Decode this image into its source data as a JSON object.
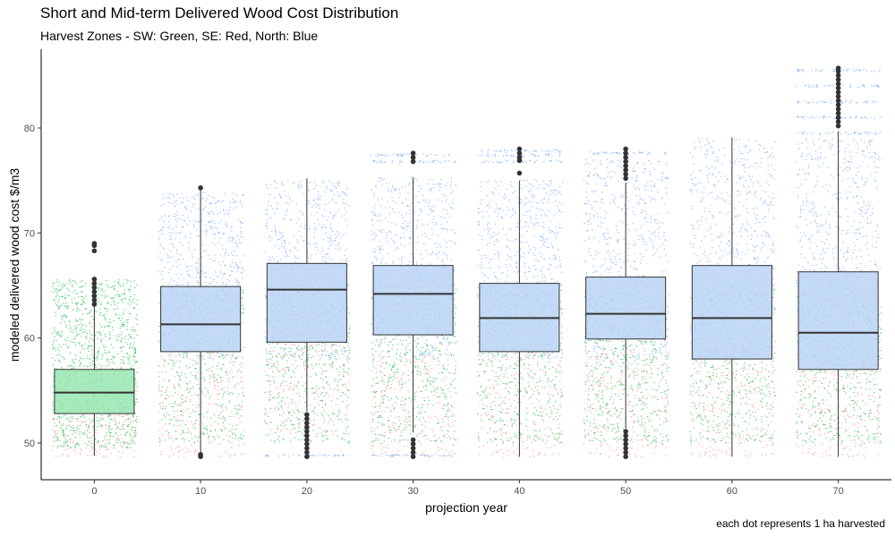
{
  "chart_data": {
    "type": "box",
    "title": "Short and Mid-term Delivered Wood Cost Distribution",
    "subtitle": "Harvest Zones - SW: Green, SE: Red, North: Blue",
    "caption": "each dot represents 1 ha harvested",
    "xlabel": "projection year",
    "ylabel": "modeled delivered wood cost $/m3",
    "x_ticks": [
      0,
      10,
      20,
      30,
      40,
      50,
      60,
      70
    ],
    "y_ticks": [
      50,
      60,
      70,
      80
    ],
    "ylim": [
      46.5,
      87.5
    ],
    "grid": false,
    "legend": "none",
    "zone_colors": {
      "SW": "#00BA38",
      "SE": "#F8766D",
      "North": "#619CFF"
    },
    "boxes": [
      {
        "x": 0,
        "whisker_low": 48.8,
        "q1": 52.8,
        "median": 54.8,
        "q3": 57.0,
        "whisker_high": 63.0,
        "fill": "#99E6B2",
        "outliers_low": [],
        "outliers_high": [
          63.2,
          63.6,
          64.0,
          64.4,
          64.8,
          65.2,
          65.6,
          68.3,
          68.8,
          69.0
        ],
        "jitter_range": [
          48.6,
          65.6
        ],
        "jitter_high": [],
        "jitter_low": []
      },
      {
        "x": 10,
        "whisker_low": 49.1,
        "q1": 58.7,
        "median": 61.3,
        "q3": 64.9,
        "whisker_high": 74.3,
        "fill": "#BAD4F5",
        "outliers_low": [
          48.7,
          48.9
        ],
        "outliers_high": [
          74.3
        ],
        "jitter_range": [
          48.6,
          74.0
        ],
        "jitter_high": [],
        "jitter_low": []
      },
      {
        "x": 20,
        "whisker_low": 53.0,
        "q1": 59.6,
        "median": 64.6,
        "q3": 67.1,
        "whisker_high": 75.2,
        "fill": "#BAD4F5",
        "outliers_low": [
          48.7,
          49.1,
          49.5,
          49.9,
          50.3,
          50.7,
          51.1,
          51.5,
          51.9,
          52.3,
          52.7
        ],
        "outliers_high": [],
        "jitter_range": [
          50.8,
          75.0
        ],
        "jitter_high": [],
        "jitter_low": [
          48.8
        ]
      },
      {
        "x": 30,
        "whisker_low": 51.0,
        "q1": 60.3,
        "median": 64.2,
        "q3": 66.9,
        "whisker_high": 75.3,
        "fill": "#BAD4F5",
        "outliers_low": [
          48.7,
          49.1,
          49.5,
          49.9,
          50.3
        ],
        "outliers_high": [
          76.8,
          77.2,
          77.6
        ],
        "jitter_range": [
          48.6,
          75.3
        ],
        "jitter_high": [
          76.8,
          77.4
        ],
        "jitter_low": [
          48.8
        ]
      },
      {
        "x": 40,
        "whisker_low": 48.7,
        "q1": 58.7,
        "median": 61.9,
        "q3": 65.2,
        "whisker_high": 75.0,
        "fill": "#BAD4F5",
        "outliers_low": [],
        "outliers_high": [
          75.7,
          76.9,
          77.2,
          77.6,
          78.0
        ],
        "jitter_range": [
          48.6,
          75.2
        ],
        "jitter_high": [
          76.8,
          77.4,
          77.8
        ],
        "jitter_low": []
      },
      {
        "x": 50,
        "whisker_low": 51.4,
        "q1": 59.9,
        "median": 62.3,
        "q3": 65.8,
        "whisker_high": 74.8,
        "fill": "#BAD4F5",
        "outliers_low": [
          48.7,
          49.1,
          49.5,
          49.9,
          50.3,
          50.7,
          51.1
        ],
        "outliers_high": [
          75.2,
          75.6,
          76.0,
          76.4,
          76.8,
          77.2,
          77.6,
          78.0
        ],
        "jitter_range": [
          48.6,
          77.0
        ],
        "jitter_high": [
          77.6
        ],
        "jitter_low": []
      },
      {
        "x": 60,
        "whisker_low": 48.7,
        "q1": 58.0,
        "median": 61.9,
        "q3": 66.9,
        "whisker_high": 79.1,
        "fill": "#BAD4F5",
        "outliers_low": [],
        "outliers_high": [],
        "jitter_range": [
          48.6,
          79.1
        ],
        "jitter_high": [],
        "jitter_low": []
      },
      {
        "x": 70,
        "whisker_low": 48.7,
        "q1": 57.0,
        "median": 60.5,
        "q3": 66.3,
        "whisker_high": 79.7,
        "fill": "#BAD4F5",
        "outliers_low": [],
        "outliers_high": [
          80.2,
          80.6,
          81.0,
          81.4,
          81.8,
          82.2,
          82.6,
          83.0,
          83.4,
          83.8,
          84.2,
          84.6,
          85.0,
          85.4,
          85.7
        ],
        "jitter_range": [
          48.6,
          79.0
        ],
        "jitter_high": [
          79.5,
          81.0,
          82.5,
          84.0,
          85.5
        ],
        "jitter_low": []
      }
    ]
  }
}
